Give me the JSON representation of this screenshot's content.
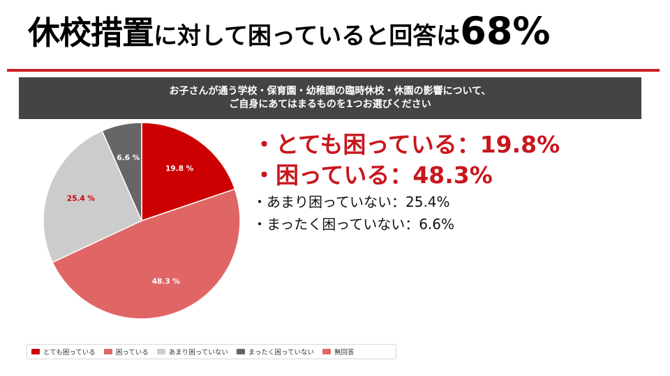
{
  "title": {
    "part1": "休校措置",
    "part2": "に対して困っていると回答は",
    "part3": "68%"
  },
  "question": {
    "line1": "お子さんが通う学校・保育園・幼稚園の臨時休校・休園の影響について、",
    "line2": "ご自身にあてはまるものを1つお選びください"
  },
  "callouts": [
    {
      "text": "・とても困っている：19.8%",
      "style": "strong"
    },
    {
      "text": "・困っている：48.3%",
      "style": "strong"
    },
    {
      "text": "・あまり困っていない：25.4%",
      "style": "normal"
    },
    {
      "text": "・まったく困っていない：6.6%",
      "style": "normal"
    }
  ],
  "colors": {
    "accent_red": "#c8161d",
    "banner_bg": "#444444",
    "rule": "#cc1f1f"
  },
  "chart_data": {
    "type": "pie",
    "slices": [
      {
        "label": "とても困っている",
        "value": 19.8,
        "display": "19.8 %",
        "color": "#cc0000"
      },
      {
        "label": "困っている",
        "value": 48.3,
        "display": "48.3 %",
        "color": "#e06666"
      },
      {
        "label": "あまり困っていない",
        "value": 25.4,
        "display": "25.4 %",
        "color": "#cccccc"
      },
      {
        "label": "まったく困っていない",
        "value": 6.6,
        "display": "6.6 %",
        "color": "#666666"
      }
    ],
    "legend": [
      {
        "label": "とても困っている",
        "color": "#cc0000"
      },
      {
        "label": "困っている",
        "color": "#e06666"
      },
      {
        "label": "あまり困っていない",
        "color": "#cccccc"
      },
      {
        "label": "まったく困っていない",
        "color": "#666666"
      },
      {
        "label": "無回答",
        "color": "#e06666"
      }
    ],
    "legend_position": "bottom",
    "start": "12 o'clock, clockwise"
  }
}
